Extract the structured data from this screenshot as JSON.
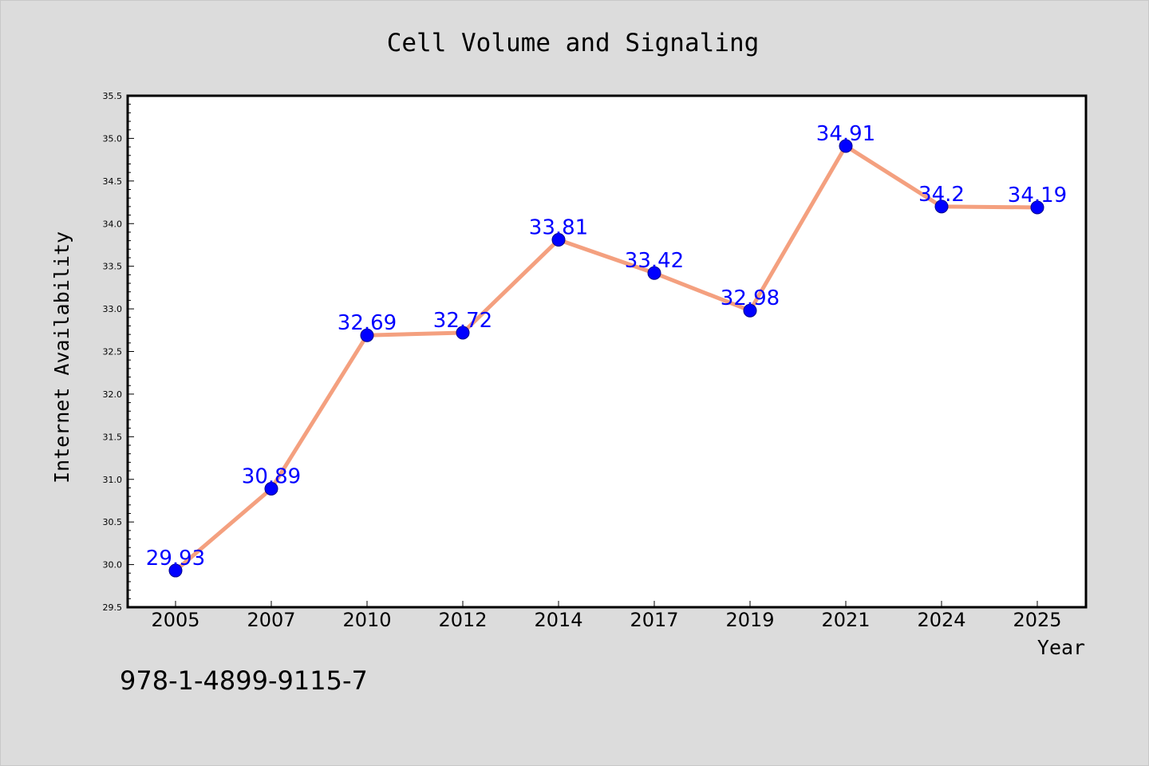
{
  "chart_data": {
    "type": "line",
    "title": "Cell Volume and Signaling",
    "xlabel": "Year",
    "ylabel": "Internet Availability",
    "categories": [
      "2005",
      "2007",
      "2010",
      "2012",
      "2014",
      "2017",
      "2019",
      "2021",
      "2024",
      "2025"
    ],
    "values": [
      29.93,
      30.89,
      32.69,
      32.72,
      33.81,
      33.42,
      32.98,
      34.91,
      34.2,
      34.19
    ],
    "data_labels": [
      "29.93",
      "30.89",
      "32.69",
      "32.72",
      "33.81",
      "33.42",
      "32.98",
      "34.91",
      "34.2",
      "34.19"
    ],
    "ylim": [
      29.5,
      35.5
    ],
    "yticks": [
      "29.5",
      "30.0",
      "30.5",
      "31.0",
      "31.5",
      "32.0",
      "32.5",
      "33.0",
      "33.5",
      "34.0",
      "34.5",
      "35.0",
      "35.5"
    ],
    "grid": false,
    "legend": "none",
    "line_color": "#f4a07f",
    "marker_color": "#0000ff",
    "label_color": "#0000ff"
  },
  "footer": {
    "text": "978-1-4899-9115-7"
  },
  "colors": {
    "background": "#dcdcdc",
    "plot_background": "#ffffff"
  }
}
